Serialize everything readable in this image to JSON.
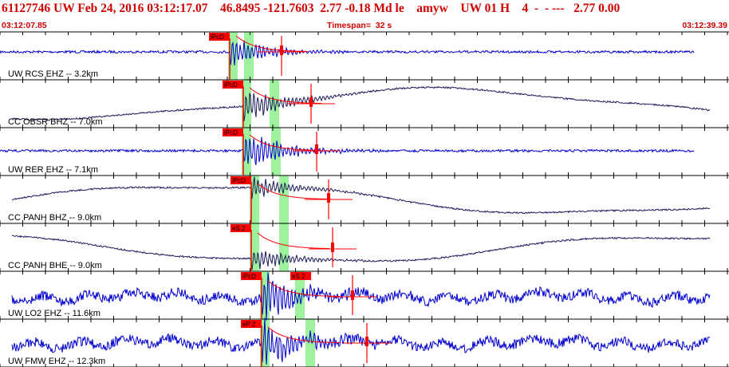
{
  "header": {
    "title": "61127746 UW Feb 24, 2016 03:12:17.07    46.8495 -121.7603  2.77 -0.18 Md le    amyw    UW 01 H    4  -  - ---   2.77 0.00",
    "start_time": "03:12:07.85",
    "timespan": "Timespan=  32 s",
    "end_time": "03:12:39.39"
  },
  "colors": {
    "header_red": "#d00000",
    "trace_blue": "#0000cc",
    "trace_dark": "#1a1a5a",
    "pick_green": "#9ef29e",
    "pick_red": "#ff0000"
  },
  "traces": [
    {
      "label": "UW RCS EHZ -- 3.2km",
      "picks": [
        "iPcD"
      ]
    },
    {
      "label": "CC OBSR BHZ -- 7.0km",
      "picks": [
        "iPcD"
      ]
    },
    {
      "label": "UW RER EHZ -- 7.1km",
      "picks": [
        "iPcD"
      ]
    },
    {
      "label": "CC PANH BHZ -- 9.0km",
      "picks": [
        "iPcD"
      ]
    },
    {
      "label": "CC PANH BHE -- 9.0km",
      "picks": [
        "eS 2"
      ]
    },
    {
      "label": "UW LO2 EHZ -- 11.6km",
      "picks": [
        "iPcD",
        "eS 2"
      ]
    },
    {
      "label": "UW FMW EHZ -- 12.3km",
      "picks": [
        "eP 2"
      ]
    }
  ]
}
